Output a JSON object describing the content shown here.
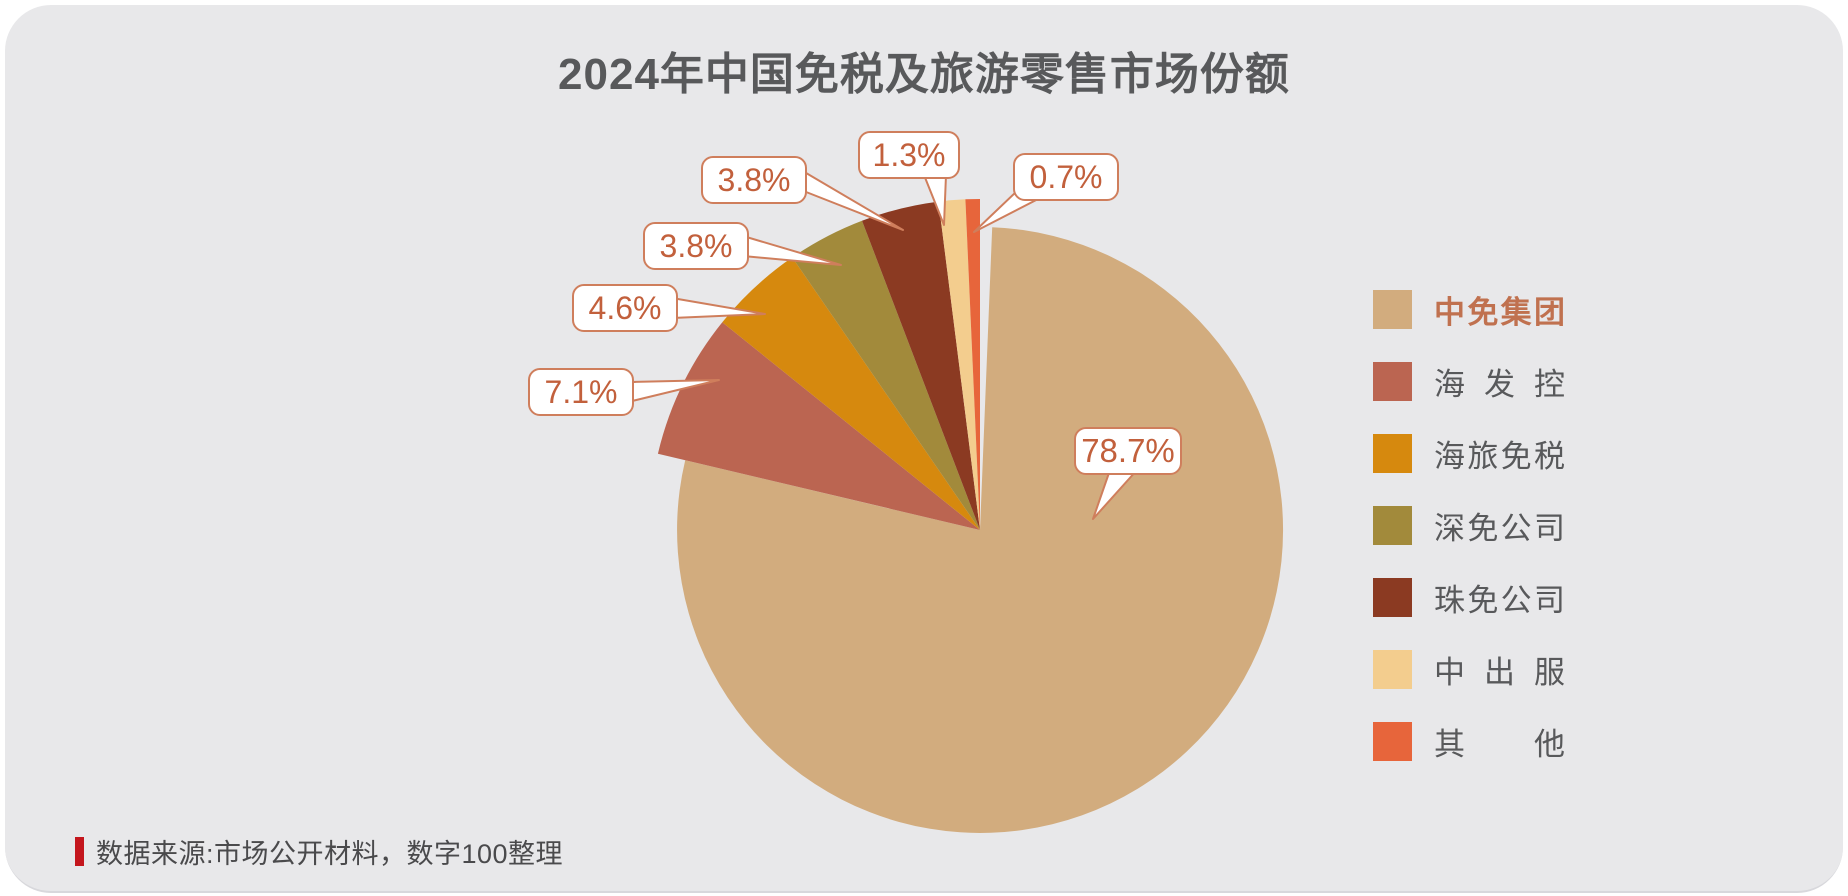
{
  "page": {
    "background_color": "#e8e8ea",
    "outer_background": "#ffffff"
  },
  "chart_data": {
    "type": "pie",
    "title": "2024年中国免税及旅游零售市场份额",
    "unit": "%",
    "legend_position": "right",
    "start_angle": "12-oclock-clockwise",
    "highlight_legend_item": "中免集团",
    "slices": [
      {
        "name": "中免集团",
        "value": 78.7,
        "label": "78.7%",
        "color": "#d2ac7e"
      },
      {
        "name": "海发控",
        "value": 7.1,
        "label": "7.1%",
        "color": "#bb6551"
      },
      {
        "name": "海旅免税",
        "value": 4.6,
        "label": "4.6%",
        "color": "#d6890e"
      },
      {
        "name": "深免公司",
        "value": 3.8,
        "label": "3.8%",
        "color": "#a28a3b"
      },
      {
        "name": "珠免公司",
        "value": 3.8,
        "label": "3.8%",
        "color": "#8b3a22"
      },
      {
        "name": "中出服",
        "value": 1.3,
        "label": "1.3%",
        "color": "#f3cd8e"
      },
      {
        "name": "其他",
        "value": 0.7,
        "label": "0.7%",
        "color": "#e7653b"
      }
    ],
    "callout_style": {
      "border_color": "#cf7e5c",
      "text_color": "#c2603c",
      "background": "#ffffff"
    }
  },
  "source": {
    "text": "数据来源:市场公开材料，数字100整理",
    "accent_color": "#c4161d"
  }
}
